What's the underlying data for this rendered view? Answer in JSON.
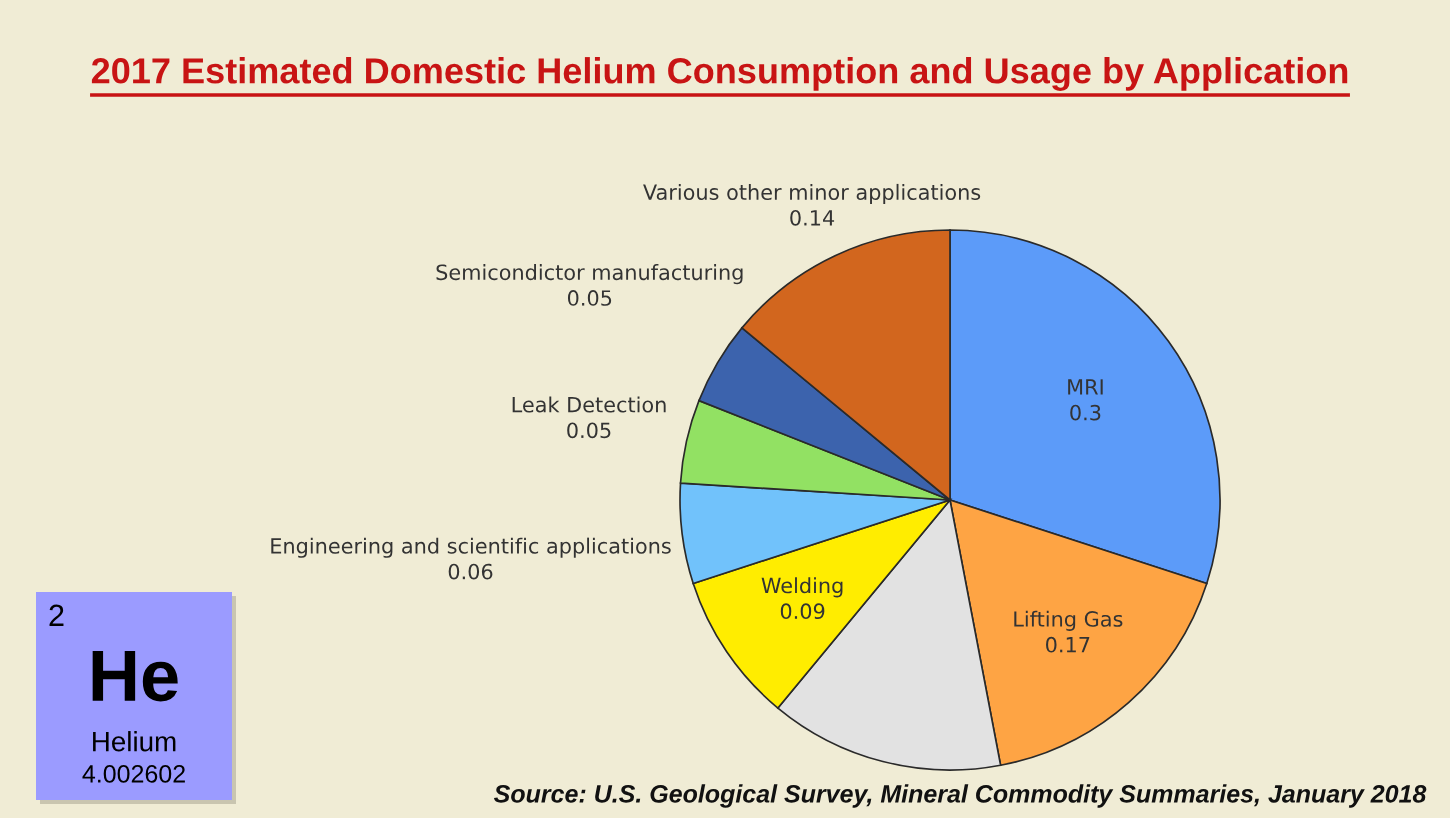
{
  "chart_data": {
    "type": "pie",
    "title": "2017 Estimated Domestic Helium Consumption and Usage by Application",
    "categories": [
      "MRI",
      "Lifting Gas",
      null,
      "Welding",
      "Engineering and scientific applications",
      "Leak Detection",
      "Semicondictor manufacturing",
      "Various other minor applications"
    ],
    "values": [
      0.3,
      0.17,
      0.14,
      0.09,
      0.06,
      0.05,
      0.05,
      0.14
    ],
    "value_labels": [
      "0.3",
      "0.17",
      null,
      "0.09",
      "0.06",
      "0.05",
      "0.05",
      "0.14"
    ],
    "colors": [
      "#5c9bf9",
      "#fea444",
      "#e2e2e2",
      "#ffed00",
      "#71c2fb",
      "#92e163",
      "#3c63ad",
      "#d2661e"
    ],
    "annotations": [
      "Source: U.S. Geological Survey, Mineral Commodity Summaries, January 2018",
      "2",
      "He",
      "Helium",
      "4.002602"
    ]
  }
}
